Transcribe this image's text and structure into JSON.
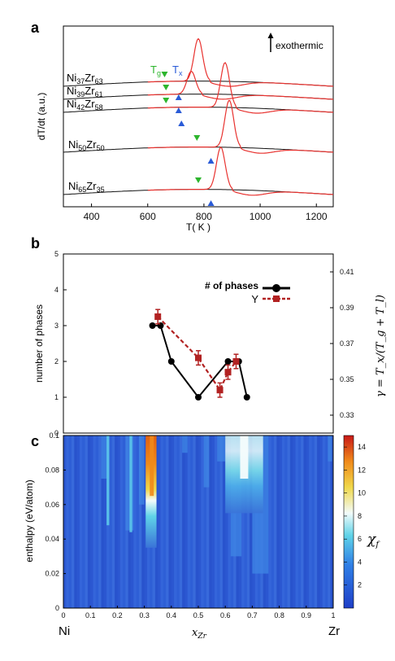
{
  "figure": {
    "panels": [
      "a",
      "b",
      "c"
    ]
  },
  "colors": {
    "dsc_black": "#111111",
    "dsc_red": "#e8322f",
    "tg_marker": "#2db52d",
    "tx_marker": "#2a5bd7",
    "phases_line": "#000000",
    "gamma_line": "#b22222"
  },
  "chart_data": [
    {
      "panel": "a",
      "type": "line",
      "xlabel": "T( K )",
      "ylabel": "dT/dt (a.u.)",
      "xlim": [
        300,
        1260
      ],
      "xticks": [
        "400",
        "600",
        "800",
        "1000",
        "1200"
      ],
      "annotation": "exothermic",
      "marker_labels": {
        "tg": "T",
        "tg_sub": "g",
        "tx": "T",
        "tx_sub": "x"
      },
      "alloys": [
        {
          "name": "Ni",
          "ni_sub": "37",
          "zr": "Zr",
          "zr_sub": "63",
          "tg": 660,
          "tx": 710,
          "peak": 780
        },
        {
          "name": "Ni",
          "ni_sub": "39",
          "zr": "Zr",
          "zr_sub": "61",
          "tg": 665,
          "tx": 710,
          "peak": 755
        },
        {
          "name": "Ni",
          "ni_sub": "42",
          "zr": "Zr",
          "zr_sub": "58",
          "tg": 665,
          "tx": 720,
          "peak": 875
        },
        {
          "name": "Ni",
          "ni_sub": "50",
          "zr": "Zr",
          "zr_sub": "50",
          "tg": 775,
          "tx": 825,
          "peak": 890
        },
        {
          "name": "Ni",
          "ni_sub": "65",
          "zr": "Zr",
          "zr_sub": "35",
          "tg": 780,
          "tx": 825,
          "peak": 860
        }
      ]
    },
    {
      "panel": "b",
      "type": "line",
      "ylabel": "number of phases",
      "y2label": "γ = T_x/(T_g + T_l)",
      "ylim": [
        0,
        5
      ],
      "yticks": [
        "0",
        "1",
        "2",
        "3",
        "4",
        "5"
      ],
      "y2lim": [
        0.32,
        0.42
      ],
      "y2ticks": [
        "0.33",
        "0.35",
        "0.37",
        "0.39",
        "0.41"
      ],
      "xlim": [
        0,
        1
      ],
      "legend_position": "top-right",
      "series": [
        {
          "name": "# of phases",
          "x": [
            0.33,
            0.36,
            0.4,
            0.5,
            0.61,
            0.65,
            0.68
          ],
          "y": [
            3,
            3,
            2,
            1,
            2,
            2,
            1
          ]
        },
        {
          "name": "Υ",
          "x": [
            0.35,
            0.5,
            0.58,
            0.61,
            0.64
          ],
          "y": [
            0.385,
            0.362,
            0.344,
            0.354,
            0.36
          ],
          "err": [
            0.004,
            0.004,
            0.004,
            0.004,
            0.004
          ]
        }
      ]
    },
    {
      "panel": "c",
      "type": "heatmap",
      "xlabel": "x",
      "xlabel_sub": "Zr",
      "ylabel": "enthalpy (eV/atom)",
      "xlim": [
        0,
        1
      ],
      "ylim": [
        0,
        0.1
      ],
      "xticks": [
        "0",
        "0.1",
        "0.2",
        "0.3",
        "0.4",
        "0.5",
        "0.6",
        "0.7",
        "0.8",
        "0.9",
        "1"
      ],
      "yticks": [
        "0",
        "0.02",
        "0.04",
        "0.06",
        "0.08",
        "0.1"
      ],
      "x_end_labels": {
        "left": "Ni",
        "right": "Zr"
      },
      "colorbar": {
        "label": "χ",
        "label_sub": "f",
        "min": 0,
        "max": 15,
        "ticks": [
          "2",
          "4",
          "6",
          "8",
          "10",
          "12",
          "14"
        ]
      },
      "hotspots": [
        {
          "x": 0.33,
          "y_top": 0.1,
          "peak": 12
        },
        {
          "x": 0.67,
          "y_top": 0.1,
          "peak": 8
        },
        {
          "x": 0.16,
          "y_top": 0.1,
          "peak": 5
        },
        {
          "x": 0.25,
          "y_top": 0.1,
          "peak": 5.5
        }
      ]
    }
  ]
}
